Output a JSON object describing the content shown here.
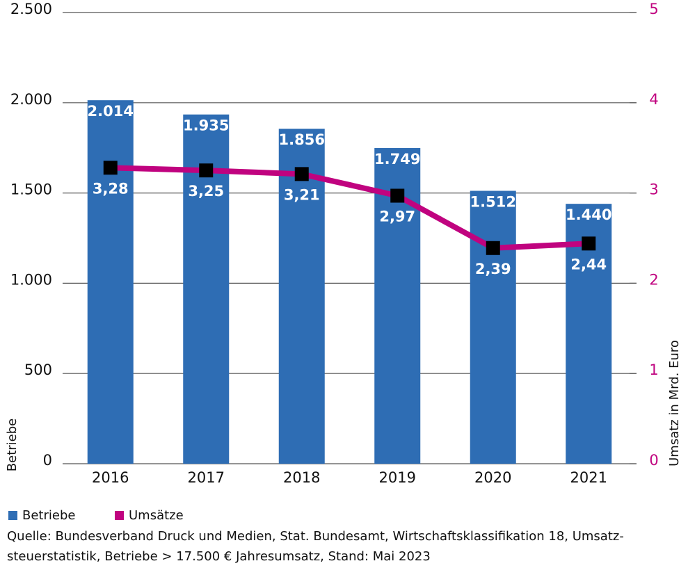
{
  "chart_data": {
    "type": "bar-line",
    "categories": [
      "2016",
      "2017",
      "2018",
      "2019",
      "2020",
      "2021"
    ],
    "series": [
      {
        "name": "Betriebe",
        "color": "#2e6db4",
        "values": [
          2014,
          1935,
          1856,
          1749,
          1512,
          1440
        ],
        "value_labels": [
          "2.014",
          "1.935",
          "1.856",
          "1.749",
          "1.512",
          "1.440"
        ]
      },
      {
        "name": "Umsätze",
        "color": "#c0037f",
        "axis": "y2",
        "values": [
          3.28,
          3.25,
          3.21,
          2.97,
          2.39,
          2.44
        ],
        "value_labels": [
          "3,28",
          "3,25",
          "3,21",
          "2,97",
          "2,39",
          "2,44"
        ]
      }
    ],
    "ylim": [
      0,
      2500
    ],
    "yticks": [
      0,
      500,
      {
        "value": 1000,
        "label": "1.000"
      },
      {
        "value": 1500,
        "label": "1.500"
      },
      {
        "value": 2000,
        "label": "2.000"
      },
      {
        "value": 2500,
        "label": "2.500"
      }
    ],
    "y2lim": [
      0,
      5
    ],
    "y2ticks": [
      0,
      1,
      2,
      3,
      4,
      5
    ],
    "y_label": "Betriebe",
    "y2_label": "Umsatz in Mrd. Euro",
    "grid": true,
    "source_lines": [
      "Quelle: Bundesverband Druck und Medien, Stat. Bundesamt, Wirtschaftsklassifikation 18, Umsatz-",
      "steuerstatistik,  Betriebe > 17.500 € Jahresumsatz, Stand: Mai 2023"
    ]
  }
}
